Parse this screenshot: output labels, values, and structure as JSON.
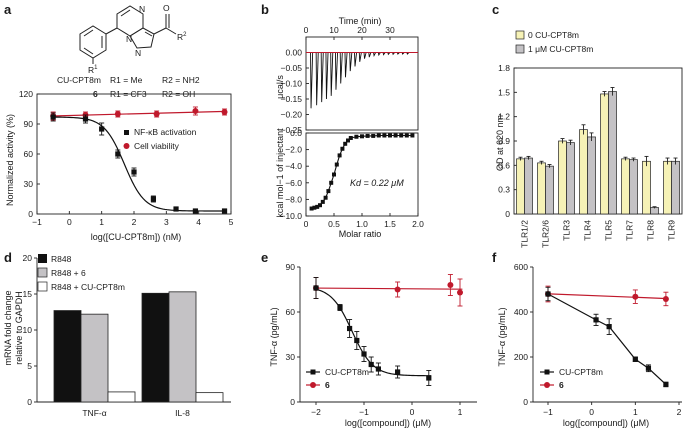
{
  "figure": {
    "panel_letters": [
      "a",
      "b",
      "c",
      "d",
      "e",
      "f"
    ]
  },
  "structure": {
    "compound_name": "CU-CPT8m",
    "compound_number": "6",
    "r1_label": "R",
    "r1_sup": "1",
    "r2_label": "R",
    "r2_sup": "2",
    "n_label": "N",
    "o_label": "O",
    "row1": {
      "r1": "R1 = Me",
      "r2": "R2 = NH2"
    },
    "row2": {
      "r1": "R1 = CF3",
      "r2": "R2 = OH"
    }
  },
  "chart_data": [
    {
      "id": "a",
      "type": "line",
      "title": "",
      "xlabel": "log([CU-CPT8m]) (nM)",
      "ylabel": "Normalized activity (%)",
      "xlim": [
        -1,
        5
      ],
      "ylim": [
        0,
        120
      ],
      "xticks": [
        -1,
        0,
        1,
        2,
        3,
        4,
        5
      ],
      "yticks": [
        0,
        30,
        60,
        90,
        120
      ],
      "series": [
        {
          "name": "NF-κB activation",
          "color": "#111111",
          "marker": "square",
          "x": [
            -0.5,
            0.5,
            1.0,
            1.5,
            2.0,
            2.6,
            3.3,
            3.9,
            4.8
          ],
          "y": [
            97,
            95,
            85,
            60,
            42,
            15,
            5,
            3,
            3
          ],
          "err": [
            4,
            4,
            6,
            4,
            4,
            3,
            2,
            1,
            1
          ],
          "fit": "sigmoid",
          "fit_params": {
            "top": 97,
            "bottom": 3,
            "logIC50": 1.7,
            "hill": -1.4
          }
        },
        {
          "name": "Cell viability",
          "color": "#c0192c",
          "marker": "circle",
          "x": [
            -0.5,
            0.5,
            1.5,
            2.7,
            3.9,
            4.8
          ],
          "y": [
            98,
            99,
            100,
            100,
            103,
            102
          ],
          "err": [
            4,
            3,
            3,
            3,
            4,
            3
          ],
          "fit": "linear"
        }
      ]
    },
    {
      "id": "b",
      "type": "line",
      "title": "Time (min)",
      "top_xticks": [
        0,
        10,
        20,
        30
      ],
      "top_xlim": [
        0,
        40
      ],
      "upper_ylabel": "μcal/s",
      "upper_ylim": [
        -0.25,
        0.05
      ],
      "upper_yticks": [
        0.0,
        -0.05,
        -0.1,
        -0.15,
        -0.2,
        -0.25
      ],
      "injection_times": [
        1.8,
        3.8,
        5.6,
        7.3,
        9.0,
        10.7,
        12.4,
        14.1,
        15.8,
        17.5,
        19.2,
        20.9,
        22.6,
        24.3,
        26.0,
        27.7,
        29.4,
        31.1,
        32.8,
        34.5,
        36.2
      ],
      "injection_peaks": [
        -0.18,
        -0.17,
        -0.16,
        -0.15,
        -0.14,
        -0.12,
        -0.1,
        -0.08,
        -0.06,
        -0.045,
        -0.03,
        -0.02,
        -0.015,
        -0.01,
        -0.008,
        -0.007,
        -0.006,
        -0.006,
        -0.005,
        -0.005,
        -0.005
      ],
      "lower_xlabel": "Molar ratio",
      "lower_ylabel": "kcal mol−1 of injectant",
      "lower_xlim": [
        0,
        2.0
      ],
      "lower_ylim": [
        -10.0,
        0.0
      ],
      "lower_xticks": [
        0,
        0.5,
        1.0,
        1.5,
        2.0
      ],
      "lower_yticks": [
        0.0,
        -2.0,
        -4.0,
        -6.0,
        -8.0,
        -10.0
      ],
      "x": [
        0.1,
        0.15,
        0.2,
        0.25,
        0.3,
        0.35,
        0.4,
        0.45,
        0.5,
        0.55,
        0.6,
        0.65,
        0.7,
        0.75,
        0.8,
        0.9,
        1.0,
        1.1,
        1.2,
        1.3,
        1.4,
        1.5,
        1.6,
        1.7,
        1.8,
        1.9
      ],
      "y": [
        -9.1,
        -9.0,
        -8.9,
        -8.7,
        -8.3,
        -7.8,
        -7.0,
        -6.0,
        -5.0,
        -3.8,
        -2.7,
        -1.9,
        -1.3,
        -0.9,
        -0.6,
        -0.45,
        -0.4,
        -0.35,
        -0.35,
        -0.3,
        -0.3,
        -0.3,
        -0.3,
        -0.3,
        -0.3,
        -0.3
      ],
      "annotation": "Kd = 0.22 μM"
    },
    {
      "id": "c",
      "type": "bar",
      "ylabel": "OD at 620 nm",
      "ylim": [
        0,
        1.8
      ],
      "yticks": [
        0,
        0.3,
        0.6,
        0.9,
        1.2,
        1.5,
        1.8
      ],
      "categories": [
        "TLR1/2",
        "TLR2/6",
        "TLR3",
        "TLR4",
        "TLR5",
        "TLR7",
        "TLR8",
        "TLR9"
      ],
      "series": [
        {
          "name": "0 CU-CPT8m",
          "color": "#f6f2b6",
          "values": [
            0.68,
            0.63,
            0.9,
            1.04,
            1.48,
            0.68,
            0.65,
            0.65
          ],
          "err": [
            0.02,
            0.02,
            0.03,
            0.06,
            0.03,
            0.02,
            0.06,
            0.04
          ]
        },
        {
          "name": "1 μM CU-CPT8m",
          "color": "#c4c2c5",
          "values": [
            0.69,
            0.59,
            0.88,
            0.95,
            1.51,
            0.67,
            0.08,
            0.65
          ],
          "err": [
            0.02,
            0.02,
            0.03,
            0.05,
            0.05,
            0.02,
            0.01,
            0.04
          ]
        }
      ]
    },
    {
      "id": "d",
      "type": "bar",
      "ylabel_line1": "mRNA fold change",
      "ylabel_line2": "relative to GAPDH",
      "ylim": [
        0,
        20
      ],
      "yticks": [
        0,
        5,
        10,
        15,
        20
      ],
      "categories": [
        "TNF-α",
        "IL-8"
      ],
      "series": [
        {
          "name": "R848",
          "color": "#111111",
          "values": [
            12.7,
            15.1
          ]
        },
        {
          "name": "R848 + 6",
          "color": "#c4c2c5",
          "values": [
            12.2,
            15.3
          ]
        },
        {
          "name": "R848 + CU-CPT8m",
          "color": "#ffffff",
          "values": [
            1.4,
            1.3
          ]
        }
      ]
    },
    {
      "id": "e",
      "type": "line",
      "xlabel": "log([compound]) (μM)",
      "ylabel": "TNF-α (pg/mL)",
      "xlim": [
        -2,
        1
      ],
      "ylim": [
        0,
        90
      ],
      "xticks": [
        -2,
        -1,
        0,
        1
      ],
      "yticks": [
        0,
        30,
        60,
        90
      ],
      "series": [
        {
          "name": "CU-CPT8m",
          "color": "#111111",
          "marker": "square",
          "x": [
            -2.0,
            -1.5,
            -1.3,
            -1.15,
            -1.0,
            -0.85,
            -0.7,
            -0.3,
            0.35
          ],
          "y": [
            76,
            63,
            49,
            41,
            32,
            25,
            22,
            20,
            16
          ],
          "err": [
            7,
            2,
            6,
            6,
            5,
            5,
            4,
            4,
            5
          ],
          "fit": "sigmoid",
          "fit_params": {
            "top": 77,
            "bottom": 17.5,
            "logIC50": -1.25,
            "hill": -2.0
          }
        },
        {
          "name": "6",
          "color": "#c0192c",
          "marker": "circle",
          "x": [
            -2.0,
            -0.3,
            0.8,
            1.0
          ],
          "y": [
            76,
            75,
            78,
            73
          ],
          "err": [
            7,
            5,
            7,
            9
          ],
          "fit": "linear"
        }
      ]
    },
    {
      "id": "f",
      "type": "line",
      "xlabel": "log([compound]) (μM)",
      "ylabel": "TNF-α (pg/mL)",
      "xlim": [
        -1,
        2
      ],
      "ylim": [
        0,
        600
      ],
      "xticks": [
        -1,
        0,
        1,
        2
      ],
      "yticks": [
        0,
        200,
        400,
        600
      ],
      "series": [
        {
          "name": "CU-CPT8m",
          "color": "#111111",
          "marker": "square",
          "x": [
            -1.0,
            0.1,
            0.4,
            1.0,
            1.3,
            1.7
          ],
          "y": [
            480,
            365,
            335,
            190,
            150,
            78
          ],
          "err": [
            30,
            25,
            35,
            10,
            15,
            10
          ],
          "fit": "connect"
        },
        {
          "name": "6",
          "color": "#c0192c",
          "marker": "circle",
          "x": [
            -1.0,
            1.0,
            1.7
          ],
          "y": [
            480,
            468,
            458
          ],
          "err": [
            35,
            30,
            30
          ],
          "fit": "linear"
        }
      ]
    }
  ]
}
